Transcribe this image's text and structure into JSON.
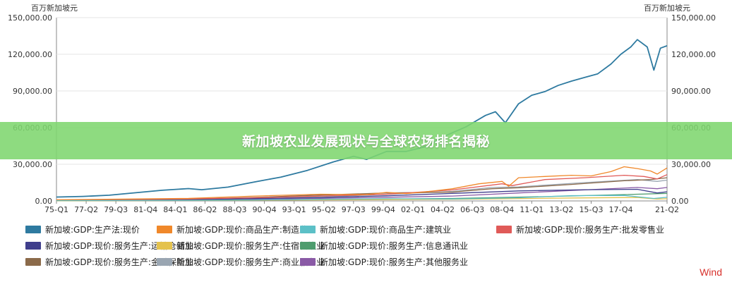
{
  "header": {
    "unit_left": "百万新加坡元",
    "unit_right": "百万新加坡元"
  },
  "banner": {
    "title": "新加坡农业发展现状与全球农场排名揭秘"
  },
  "watermark": {
    "text": "Wind"
  },
  "chart_data": {
    "type": "line",
    "ylim": [
      0,
      150000
    ],
    "yticks": [
      "0.00",
      "30,000.00",
      "60,000.00",
      "90,000.00",
      "120,000.00",
      "150,000.00"
    ],
    "ytick_values": [
      0,
      30000,
      60000,
      90000,
      120000,
      150000
    ],
    "xlim": [
      1975.0,
      2021.25
    ],
    "xticks": [
      "75-Q1",
      "77-Q2",
      "79-Q3",
      "81-Q4",
      "84-Q1",
      "86-Q2",
      "88-Q3",
      "90-Q4",
      "93-Q1",
      "95-Q2",
      "97-Q3",
      "99-Q4",
      "02-Q1",
      "04-Q2",
      "06-Q3",
      "08-Q4",
      "11-Q1",
      "13-Q2",
      "15-Q3",
      "17-Q4",
      "21-Q2"
    ],
    "xtick_values": [
      1975.0,
      1977.25,
      1979.5,
      1981.75,
      1984.0,
      1986.25,
      1988.5,
      1990.75,
      1993.0,
      1995.25,
      1997.5,
      1999.75,
      2002.0,
      2004.25,
      2006.5,
      2008.75,
      2011.0,
      2013.25,
      2015.5,
      2017.75,
      2021.25
    ],
    "grid": true,
    "legend_position": "bottom",
    "series": [
      {
        "name": "新加坡:GDP:生产法:现价",
        "color": "#2e7aa0",
        "x": [
          1975.0,
          1977.0,
          1979.0,
          1981.0,
          1983.0,
          1985.0,
          1986.0,
          1988.0,
          1990.0,
          1992.0,
          1994.0,
          1996.0,
          1997.5,
          1998.5,
          2000.0,
          2001.5,
          2003.0,
          2004.5,
          2006.0,
          2007.5,
          2008.25,
          2009.0,
          2010.0,
          2011.0,
          2012.0,
          2013.0,
          2014.0,
          2015.0,
          2016.0,
          2017.0,
          2017.75,
          2018.5,
          2019.0,
          2019.75,
          2020.25,
          2020.75,
          2021.25
        ],
        "values": [
          3200,
          3700,
          4700,
          6700,
          8700,
          10100,
          9200,
          11300,
          15500,
          19500,
          25000,
          32000,
          36500,
          34000,
          40500,
          40500,
          44500,
          53500,
          60500,
          70000,
          73000,
          64000,
          79500,
          86500,
          89500,
          94500,
          98000,
          101000,
          104000,
          112000,
          120000,
          126000,
          132000,
          126000,
          107000,
          125000,
          127000
        ]
      },
      {
        "name": "新加坡:GDP:现价:商品生产:制造业",
        "color": "#f0882a",
        "x": [
          1975.0,
          1980.0,
          1985.0,
          1990.0,
          1995.0,
          1998.5,
          2000.0,
          2001.5,
          2003.0,
          2005.0,
          2007.0,
          2008.75,
          2009.25,
          2010.0,
          2012.0,
          2014.0,
          2015.5,
          2017.0,
          2018.0,
          2019.0,
          2020.0,
          2020.5,
          2021.25
        ],
        "values": [
          900,
          1500,
          2100,
          4000,
          5500,
          5200,
          7000,
          6000,
          7500,
          10000,
          14000,
          16000,
          12000,
          19000,
          20000,
          21000,
          20500,
          24000,
          28000,
          26500,
          24500,
          22000,
          27000
        ]
      },
      {
        "name": "新加坡:GDP:现价:商品生产:建筑业",
        "color": "#5cc0c7",
        "x": [
          1975.0,
          1985.0,
          1990.0,
          1995.0,
          2000.0,
          2005.0,
          2010.0,
          2014.0,
          2018.0,
          2020.25,
          2021.25
        ],
        "values": [
          300,
          500,
          800,
          1300,
          1800,
          1600,
          2600,
          4300,
          4500,
          2000,
          3000
        ]
      },
      {
        "name": "新加坡:GDP:现价:服务生产:批发零售业",
        "color": "#e05a58",
        "x": [
          1975.0,
          1980.0,
          1985.0,
          1990.0,
          1995.0,
          2000.0,
          2005.0,
          2008.75,
          2009.5,
          2012.0,
          2015.0,
          2018.0,
          2019.5,
          2020.5,
          2021.25
        ],
        "values": [
          500,
          1100,
          1600,
          2600,
          4000,
          5500,
          9000,
          14000,
          12500,
          17500,
          19000,
          21000,
          20000,
          18000,
          21500
        ]
      },
      {
        "name": "新加坡:GDP:现价:服务生产:运输仓储业",
        "color": "#3f3e8c",
        "x": [
          1975.0,
          1985.0,
          1990.0,
          1995.0,
          2000.0,
          2005.0,
          2010.0,
          2015.0,
          2019.0,
          2020.5,
          2021.25
        ],
        "values": [
          400,
          900,
          1900,
          2800,
          4200,
          6200,
          8200,
          9200,
          9500,
          6500,
          7500
        ]
      },
      {
        "name": "新加坡:GDP:现价:服务生产:住宿餐饮业",
        "color": "#e4c24e",
        "x": [
          1975.0,
          1985.0,
          1995.0,
          2005.0,
          2015.0,
          2019.0,
          2020.5,
          2021.25
        ],
        "values": [
          200,
          400,
          800,
          1300,
          2500,
          2800,
          1500,
          1800
        ]
      },
      {
        "name": "新加坡:GDP:现价:服务生产:信息通讯业",
        "color": "#4e9c6e",
        "x": [
          1975.0,
          1985.0,
          1995.0,
          2005.0,
          2012.0,
          2018.0,
          2021.25
        ],
        "values": [
          150,
          400,
          1000,
          2000,
          3500,
          5200,
          6200
        ]
      },
      {
        "name": "新加坡:GDP:现价:服务生产:金融保险业",
        "color": "#8b6a4a",
        "x": [
          1975.0,
          1980.0,
          1985.0,
          1990.0,
          1995.0,
          2000.0,
          2005.0,
          2008.0,
          2010.0,
          2014.0,
          2018.0,
          2020.0,
          2021.25
        ],
        "values": [
          300,
          900,
          1500,
          2900,
          4800,
          6500,
          7200,
          10000,
          10800,
          13500,
          16500,
          17500,
          19000
        ]
      },
      {
        "name": "新加坡:GDP:现价:服务生产:商业服务业",
        "color": "#9aa6b2",
        "x": [
          1975.0,
          1985.0,
          1990.0,
          1995.0,
          2000.0,
          2005.0,
          2008.0,
          2010.0,
          2015.0,
          2019.0,
          2020.5,
          2021.25
        ],
        "values": [
          300,
          1000,
          1800,
          3200,
          5500,
          7800,
          11000,
          11500,
          15000,
          17500,
          16000,
          17000
        ]
      },
      {
        "name": "新加坡:GDP:现价:服务生产:其他服务业",
        "color": "#8a5aa6",
        "x": [
          1975.0,
          1985.0,
          1995.0,
          2000.0,
          2005.0,
          2010.0,
          2015.0,
          2019.0,
          2020.5,
          2021.25
        ],
        "values": [
          300,
          700,
          2100,
          3000,
          4000,
          6500,
          9000,
          11000,
          10000,
          11000
        ]
      }
    ]
  }
}
